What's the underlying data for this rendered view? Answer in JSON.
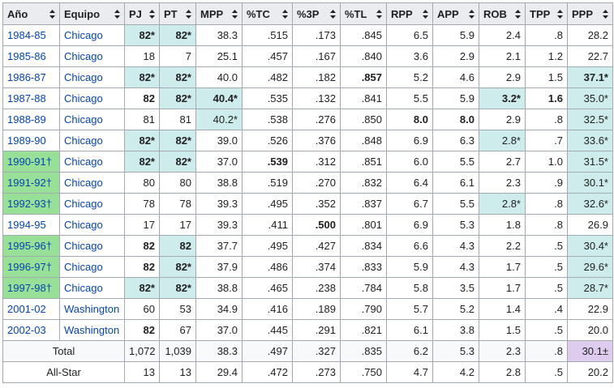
{
  "headers": [
    "Año",
    "Equipo",
    "PJ",
    "PT",
    "MPP",
    "%TC",
    "%3P",
    "%TL",
    "RPP",
    "APP",
    "ROB",
    "TPP",
    "PPP"
  ],
  "rows": [
    {
      "season": "1984-85",
      "team": "Chicago",
      "pj": "82*",
      "pt": "82*",
      "mpp": "38.3",
      "tc": ".515",
      "p3": ".173",
      "tl": ".845",
      "rpp": "6.5",
      "app": "5.9",
      "rob": "2.4",
      "tpp": ".8",
      "ppp": "28.2"
    },
    {
      "season": "1985-86",
      "team": "Chicago",
      "pj": "18",
      "pt": "7",
      "mpp": "25.1",
      "tc": ".457",
      "p3": ".167",
      "tl": ".840",
      "rpp": "3.6",
      "app": "2.9",
      "rob": "2.1",
      "tpp": "1.2",
      "ppp": "22.7"
    },
    {
      "season": "1986-87",
      "team": "Chicago",
      "pj": "82*",
      "pt": "82*",
      "mpp": "40.0",
      "tc": ".482",
      "p3": ".182",
      "tl": ".857",
      "rpp": "5.2",
      "app": "4.6",
      "rob": "2.9",
      "tpp": "1.5",
      "ppp": "37.1*"
    },
    {
      "season": "1987-88",
      "team": "Chicago",
      "pj": "82",
      "pt": "82*",
      "mpp": "40.4*",
      "tc": ".535",
      "p3": ".132",
      "tl": ".841",
      "rpp": "5.5",
      "app": "5.9",
      "rob": "3.2*",
      "tpp": "1.6",
      "ppp": "35.0*"
    },
    {
      "season": "1988-89",
      "team": "Chicago",
      "pj": "81",
      "pt": "81",
      "mpp": "40.2*",
      "tc": ".538",
      "p3": ".276",
      "tl": ".850",
      "rpp": "8.0",
      "app": "8.0",
      "rob": "2.9",
      "tpp": ".8",
      "ppp": "32.5*"
    },
    {
      "season": "1989-90",
      "team": "Chicago",
      "pj": "82*",
      "pt": "82*",
      "mpp": "39.0",
      "tc": ".526",
      "p3": ".376",
      "tl": ".848",
      "rpp": "6.9",
      "app": "6.3",
      "rob": "2.8*",
      "tpp": ".7",
      "ppp": "33.6*"
    },
    {
      "season": "1990-91†",
      "team": "Chicago",
      "pj": "82*",
      "pt": "82*",
      "mpp": "37.0",
      "tc": ".539",
      "p3": ".312",
      "tl": ".851",
      "rpp": "6.0",
      "app": "5.5",
      "rob": "2.7",
      "tpp": "1.0",
      "ppp": "31.5*"
    },
    {
      "season": "1991-92†",
      "team": "Chicago",
      "pj": "80",
      "pt": "80",
      "mpp": "38.8",
      "tc": ".519",
      "p3": ".270",
      "tl": ".832",
      "rpp": "6.4",
      "app": "6.1",
      "rob": "2.3",
      "tpp": ".9",
      "ppp": "30.1*"
    },
    {
      "season": "1992-93†",
      "team": "Chicago",
      "pj": "78",
      "pt": "78",
      "mpp": "39.3",
      "tc": ".495",
      "p3": ".352",
      "tl": ".837",
      "rpp": "6.7",
      "app": "5.5",
      "rob": "2.8*",
      "tpp": ".8",
      "ppp": "32.6*"
    },
    {
      "season": "1994-95",
      "team": "Chicago",
      "pj": "17",
      "pt": "17",
      "mpp": "39.3",
      "tc": ".411",
      "p3": ".500",
      "tl": ".801",
      "rpp": "6.9",
      "app": "5.3",
      "rob": "1.8",
      "tpp": ".8",
      "ppp": "26.9"
    },
    {
      "season": "1995-96†",
      "team": "Chicago",
      "pj": "82",
      "pt": "82",
      "mpp": "37.7",
      "tc": ".495",
      "p3": ".427",
      "tl": ".834",
      "rpp": "6.6",
      "app": "4.3",
      "rob": "2.2",
      "tpp": ".5",
      "ppp": "30.4*"
    },
    {
      "season": "1996-97†",
      "team": "Chicago",
      "pj": "82",
      "pt": "82*",
      "mpp": "37.9",
      "tc": ".486",
      "p3": ".374",
      "tl": ".833",
      "rpp": "5.9",
      "app": "4.3",
      "rob": "1.7",
      "tpp": ".5",
      "ppp": "29.6*"
    },
    {
      "season": "1997-98†",
      "team": "Chicago",
      "pj": "82*",
      "pt": "82*",
      "mpp": "38.8",
      "tc": ".465",
      "p3": ".238",
      "tl": ".784",
      "rpp": "5.8",
      "app": "3.5",
      "rob": "1.7",
      "tpp": ".5",
      "ppp": "28.7*"
    },
    {
      "season": "2001-02",
      "team": "Washington",
      "pj": "60",
      "pt": "53",
      "mpp": "34.9",
      "tc": ".416",
      "p3": ".189",
      "tl": ".790",
      "rpp": "5.7",
      "app": "5.2",
      "rob": "1.4",
      "tpp": ".4",
      "ppp": "22.9"
    },
    {
      "season": "2002-03",
      "team": "Washington",
      "pj": "82",
      "pt": "67",
      "mpp": "37.0",
      "tc": ".445",
      "p3": ".291",
      "tl": ".821",
      "rpp": "6.1",
      "app": "3.8",
      "rob": "1.5",
      "tpp": ".5",
      "ppp": "20.0"
    }
  ],
  "total": {
    "label": "Total",
    "pj": "1,072",
    "pt": "1,039",
    "mpp": "38.3",
    "tc": ".497",
    "p3": ".327",
    "tl": ".835",
    "rpp": "6.2",
    "app": "5.3",
    "rob": "2.3",
    "tpp": ".8",
    "ppp": "30.1±"
  },
  "allstar": {
    "label": "All-Star",
    "pj": "13",
    "pt": "13",
    "mpp": "29.4",
    "tc": ".472",
    "p3": ".273",
    "tl": ".750",
    "rpp": "4.7",
    "app": "4.2",
    "rob": "2.8",
    "tpp": ".5",
    "ppp": "20.2"
  },
  "colors": {
    "highlight": "#cfecec",
    "champion": "#98e098",
    "purple": "#ddccee",
    "link": "#0645ad"
  }
}
